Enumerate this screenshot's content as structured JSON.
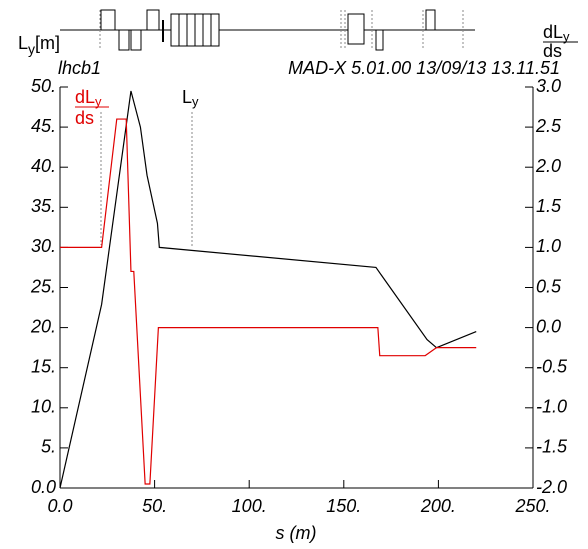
{
  "chart_data": {
    "type": "line",
    "title": "lhcb1",
    "subtitle": "MAD-X 5.01.00  13/09/13 13.11.51",
    "x_label": "s (m)",
    "y_label": {
      "base": "L",
      "sub": "y",
      "unit": "[m]"
    },
    "y2_label": {
      "numerator": "dL",
      "sub": "y",
      "denominator": "ds"
    },
    "xlim": [
      0,
      250
    ],
    "xticks": [
      {
        "value": 0,
        "label": "0.0"
      },
      {
        "value": 50,
        "label": "50."
      },
      {
        "value": 100,
        "label": "100."
      },
      {
        "value": 150,
        "label": "150."
      },
      {
        "value": 200,
        "label": "200."
      },
      {
        "value": 250,
        "label": "250."
      }
    ],
    "ylim": [
      0,
      50
    ],
    "yticks": [
      {
        "value": 0,
        "label": "0.0"
      },
      {
        "value": 5,
        "label": "5."
      },
      {
        "value": 10,
        "label": "10."
      },
      {
        "value": 15,
        "label": "15."
      },
      {
        "value": 20,
        "label": "20."
      },
      {
        "value": 25,
        "label": "25."
      },
      {
        "value": 30,
        "label": "30."
      },
      {
        "value": 35,
        "label": "35."
      },
      {
        "value": 40,
        "label": "40."
      },
      {
        "value": 45,
        "label": "45."
      },
      {
        "value": 50,
        "label": "50."
      }
    ],
    "y2lim": [
      -2,
      3
    ],
    "y2ticks": [
      {
        "value": -2,
        "label": "-2.0"
      },
      {
        "value": -1.5,
        "label": "-1.5"
      },
      {
        "value": -1,
        "label": "-1.0"
      },
      {
        "value": -0.5,
        "label": "-0.5"
      },
      {
        "value": 0,
        "label": "0.0"
      },
      {
        "value": 0.5,
        "label": "0.5"
      },
      {
        "value": 1,
        "label": "1.0"
      },
      {
        "value": 1.5,
        "label": "1.5"
      },
      {
        "value": 2,
        "label": "2.0"
      },
      {
        "value": 2.5,
        "label": "2.5"
      },
      {
        "value": 3,
        "label": "3.0"
      }
    ],
    "series": [
      {
        "name": {
          "base": "L",
          "sub": "y"
        },
        "color": "#000000",
        "axis": "y",
        "x": [
          0,
          22,
          37.5,
          42.5,
          46,
          51.5,
          52.5,
          167,
          170,
          194,
          199,
          220
        ],
        "values": [
          0,
          22.9,
          49.5,
          45,
          39,
          33,
          30,
          27.5,
          26.5,
          18.5,
          17.5,
          19.5
        ]
      },
      {
        "name": {
          "numerator": "dL",
          "sub": "y",
          "denominator": "ds"
        },
        "color": "#e00000",
        "axis": "y2",
        "x": [
          0,
          22,
          30,
          35,
          37.5,
          39,
          45,
          47.5,
          52,
          168,
          169,
          193,
          199,
          220
        ],
        "values": [
          1.0,
          1.0,
          2.6,
          2.6,
          0.7,
          0.7,
          -1.95,
          -1.95,
          0.0,
          0.0,
          -0.35,
          -0.35,
          -0.25,
          -0.25
        ]
      }
    ]
  }
}
